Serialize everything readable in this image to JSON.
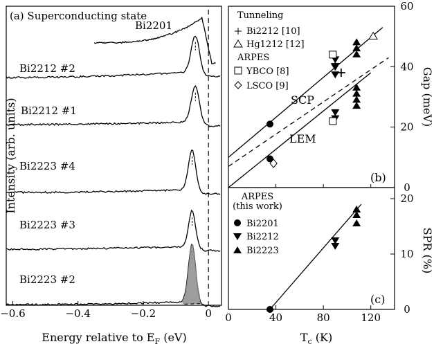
{
  "chart_data": [
    {
      "panel": "a",
      "type": "line",
      "title": "(a) Superconducting state",
      "xlabel": "Energy relative to E_F (eV)",
      "ylabel": "Intensity (arb. units)",
      "xlim": [
        -0.62,
        0.04
      ],
      "x_ticks": [
        "-0.6",
        "-0.4",
        "-0.2",
        "0"
      ],
      "fermi_level_line": 0,
      "series": [
        {
          "name": "Bi2201",
          "peak_energy": -0.02
        },
        {
          "name": "Bi2212 #2",
          "peak_energy": -0.04
        },
        {
          "name": "Bi2212 #1",
          "peak_energy": -0.04
        },
        {
          "name": "Bi2223 #4",
          "peak_energy": -0.05
        },
        {
          "name": "Bi2223 #3",
          "peak_energy": -0.05
        },
        {
          "name": "Bi2223 #2",
          "peak_energy": -0.05
        }
      ]
    },
    {
      "panel": "b",
      "type": "scatter",
      "panel_label": "(b)",
      "xlim": [
        0,
        140
      ],
      "ylim": [
        0,
        60
      ],
      "y_ticks": [
        "0",
        "20",
        "40",
        "60"
      ],
      "ylabel": "Gap (meV)",
      "legend": {
        "tunneling_title": "Tunneling",
        "tunneling": [
          "Bi2212 [10]",
          "Hg1212 [12]"
        ],
        "arpes_title": "ARPES",
        "arpes": [
          "YBCO [8]",
          "LSCO [9]"
        ]
      },
      "fit_labels": [
        "SCP",
        "LEM"
      ],
      "points": {
        "circle": [
          [
            35,
            21
          ],
          [
            35,
            9.5
          ]
        ],
        "down_triangle": [
          [
            90,
            42.5
          ],
          [
            90,
            40
          ],
          [
            90,
            37.5
          ],
          [
            90,
            25
          ],
          [
            90,
            23
          ]
        ],
        "up_triangle": [
          [
            108,
            48
          ],
          [
            108,
            46
          ],
          [
            108,
            44
          ],
          [
            108,
            33
          ],
          [
            108,
            31
          ],
          [
            108,
            29
          ],
          [
            108,
            27
          ]
        ],
        "plus": [
          [
            90,
            41
          ],
          [
            95,
            38
          ]
        ],
        "open_triangle": [
          [
            122,
            50
          ]
        ],
        "open_square": [
          [
            88,
            44
          ],
          [
            88,
            22
          ]
        ],
        "open_diamond": [
          [
            38,
            8
          ]
        ]
      },
      "lines": {
        "SCP": [
          [
            0,
            10
          ],
          [
            130,
            53
          ]
        ],
        "dashed": [
          [
            0,
            7
          ],
          [
            135,
            43
          ]
        ],
        "LEM": [
          [
            0,
            0
          ],
          [
            120,
            38
          ]
        ]
      }
    },
    {
      "panel": "c",
      "type": "scatter",
      "panel_label": "(c)",
      "xlim": [
        0,
        140
      ],
      "ylim": [
        0,
        22
      ],
      "x_ticks": [
        "0",
        "40",
        "80",
        "120"
      ],
      "y_ticks": [
        "0",
        "10",
        "20"
      ],
      "xlabel": "T_c (K)",
      "ylabel": "SPR (%)",
      "legend": {
        "title_line1": "ARPES",
        "title_line2": "(this work)",
        "items": [
          "Bi2201",
          "Bi2212",
          "Bi2223"
        ]
      },
      "points": {
        "Bi2201": [
          [
            35,
            0
          ]
        ],
        "Bi2212": [
          [
            90,
            12.5
          ],
          [
            90,
            11.5
          ]
        ],
        "Bi2223": [
          [
            108,
            18
          ],
          [
            108,
            17
          ],
          [
            108,
            15.5
          ]
        ]
      },
      "line": [
        [
          35,
          0
        ],
        [
          112,
          19
        ]
      ]
    }
  ]
}
